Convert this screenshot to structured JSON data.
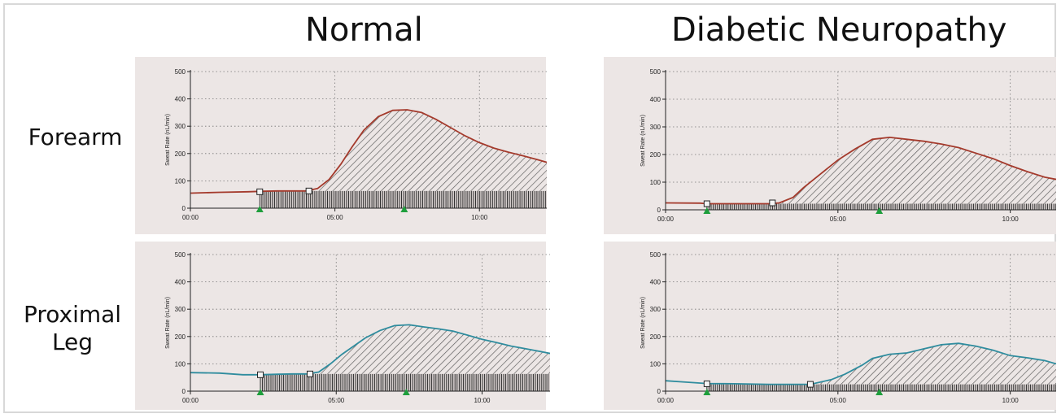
{
  "column_titles": [
    "Normal",
    "Diabetic Neuropathy"
  ],
  "row_labels": [
    [
      "Forearm"
    ],
    [
      "Proximal",
      "Leg"
    ]
  ],
  "colors": {
    "panel_bg": "#ece6e5",
    "forearm_line": "#a43a2c",
    "leg_line": "#2f8c9e",
    "marker": "#1e9e3c",
    "hatch": "#555555"
  },
  "chart_data": [
    {
      "type": "area",
      "panel": "Normal / Forearm",
      "ylabel": "Sweat Rate (nL/min)",
      "ylim": [
        0,
        500
      ],
      "yticks": [
        0,
        100,
        200,
        300,
        400,
        500
      ],
      "xlim": [
        0,
        12.33
      ],
      "xticks": [
        0,
        5,
        10
      ],
      "xtick_labels": [
        "00:00",
        "05:00",
        "10:00"
      ],
      "grid": true,
      "line_color": "forearm_line",
      "x": [
        0,
        1,
        2,
        2.5,
        3,
        3.5,
        4,
        4.4,
        4.8,
        5.2,
        5.6,
        6,
        6.5,
        7,
        7.5,
        8,
        8.5,
        9,
        9.5,
        10,
        10.5,
        11,
        11.5,
        12,
        12.33
      ],
      "y": [
        55,
        58,
        60,
        62,
        63,
        63,
        63,
        72,
        105,
        160,
        225,
        285,
        335,
        358,
        360,
        350,
        325,
        295,
        265,
        240,
        220,
        205,
        192,
        178,
        168
      ],
      "baseline": 63,
      "baseline_start": 2.4,
      "markers_square": [
        [
          2.4,
          60
        ],
        [
          4.1,
          63
        ]
      ],
      "markers_triangle": [
        2.4,
        7.4
      ]
    },
    {
      "type": "area",
      "panel": "Diabetic Neuropathy / Forearm",
      "ylabel": "Sweat Rate (nL/min)",
      "ylim": [
        0,
        500
      ],
      "yticks": [
        0,
        100,
        200,
        300,
        400,
        500
      ],
      "xlim": [
        0,
        11.33
      ],
      "xticks": [
        0,
        5,
        10
      ],
      "xtick_labels": [
        "00:00",
        "05:00",
        "10:00"
      ],
      "grid": true,
      "line_color": "forearm_line",
      "x": [
        0,
        1,
        1.2,
        2,
        3,
        3.3,
        3.7,
        4,
        4.5,
        5,
        5.5,
        6,
        6.5,
        7,
        7.5,
        8,
        8.5,
        9,
        9.5,
        10,
        10.5,
        11,
        11.33
      ],
      "y": [
        25,
        24,
        22,
        22,
        22,
        25,
        45,
        80,
        130,
        180,
        220,
        255,
        262,
        255,
        248,
        238,
        225,
        205,
        185,
        160,
        138,
        118,
        110
      ],
      "baseline": 22,
      "baseline_start": 1.2,
      "markers_square": [
        [
          1.2,
          22
        ],
        [
          3.1,
          25
        ]
      ],
      "markers_triangle": [
        1.2,
        6.2
      ]
    },
    {
      "type": "area",
      "panel": "Normal / Proximal Leg",
      "ylabel": "Sweat Rate (nL/min)",
      "ylim": [
        0,
        500
      ],
      "yticks": [
        0,
        100,
        200,
        300,
        400,
        500
      ],
      "xlim": [
        0,
        12.33
      ],
      "xticks": [
        0,
        5,
        10
      ],
      "xtick_labels": [
        "00:00",
        "05:00",
        "10:00"
      ],
      "grid": true,
      "line_color": "leg_line",
      "x": [
        0,
        1,
        1.8,
        2.4,
        3,
        3.5,
        4,
        4.4,
        4.8,
        5.2,
        5.6,
        6,
        6.5,
        7,
        7.5,
        8,
        8.5,
        9,
        9.5,
        10,
        10.5,
        11,
        11.5,
        12,
        12.33
      ],
      "y": [
        68,
        66,
        60,
        60,
        62,
        63,
        63,
        70,
        100,
        135,
        165,
        195,
        222,
        240,
        243,
        235,
        228,
        220,
        205,
        190,
        178,
        165,
        155,
        145,
        138
      ],
      "baseline": 63,
      "baseline_start": 2.4,
      "markers_square": [
        [
          2.4,
          60
        ],
        [
          4.1,
          63
        ]
      ],
      "markers_triangle": [
        2.4,
        7.4
      ]
    },
    {
      "type": "area",
      "panel": "Diabetic Neuropathy / Proximal Leg",
      "ylabel": "Sweat Rate (nL/min)",
      "ylim": [
        0,
        500
      ],
      "yticks": [
        0,
        100,
        200,
        300,
        400,
        500
      ],
      "xlim": [
        0,
        11.33
      ],
      "xticks": [
        0,
        5,
        10
      ],
      "xtick_labels": [
        "00:00",
        "05:00",
        "10:00"
      ],
      "grid": true,
      "line_color": "leg_line",
      "x": [
        0,
        0.5,
        1.2,
        2,
        3,
        3.5,
        4.2,
        4.8,
        5.2,
        5.7,
        6,
        6.5,
        7,
        7.5,
        8,
        8.5,
        9,
        9.5,
        10,
        10.5,
        11,
        11.33
      ],
      "y": [
        38,
        34,
        28,
        27,
        25,
        25,
        25,
        42,
        62,
        95,
        120,
        135,
        140,
        155,
        170,
        175,
        165,
        150,
        130,
        122,
        112,
        100
      ],
      "baseline": 25,
      "baseline_start": 1.2,
      "markers_square": [
        [
          1.2,
          27
        ],
        [
          4.2,
          25
        ]
      ],
      "markers_triangle": [
        1.2,
        6.2
      ]
    }
  ]
}
